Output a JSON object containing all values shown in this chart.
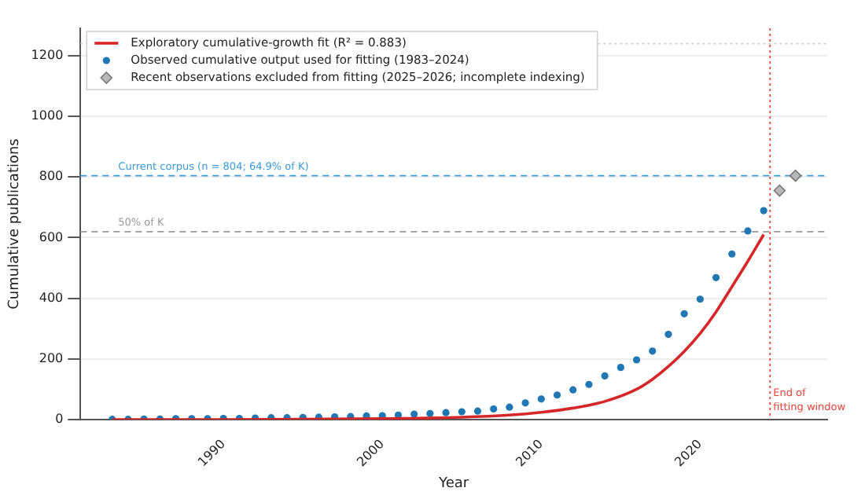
{
  "chart_data": {
    "type": "scatter",
    "xlabel": "Year",
    "ylabel": "Cumulative publications",
    "xlim": [
      1981,
      2028
    ],
    "ylim": [
      0,
      1290
    ],
    "xticks": [
      1990,
      2000,
      2010,
      2020
    ],
    "yticks": [
      0,
      200,
      400,
      600,
      800,
      1000,
      1200
    ],
    "grid": "y",
    "legend": "top left",
    "series": [
      {
        "name": "Exploratory cumulative-growth fit (R² = 0.883)",
        "type": "line",
        "color": "#d62728",
        "marker": "none",
        "x": [
          1983,
          1990,
          1995,
          2000,
          2005,
          2008,
          2010,
          2012,
          2014,
          2016,
          2017,
          2018,
          2019,
          2020,
          2021,
          2022,
          2023,
          2024
        ],
        "values": [
          0,
          0,
          1,
          3,
          8,
          15,
          24,
          38,
          60,
          100,
          133,
          175,
          225,
          284,
          355,
          438,
          522,
          610
        ]
      },
      {
        "name": "Observed cumulative output used for fitting (1983–2024)",
        "type": "scatter",
        "color": "#1f77b4",
        "marker": "circle",
        "x": [
          1983,
          1984,
          1985,
          1986,
          1987,
          1988,
          1989,
          1990,
          1991,
          1992,
          1993,
          1994,
          1995,
          1996,
          1997,
          1998,
          1999,
          2000,
          2001,
          2002,
          2003,
          2004,
          2005,
          2006,
          2007,
          2008,
          2009,
          2010,
          2011,
          2012,
          2013,
          2014,
          2015,
          2016,
          2017,
          2018,
          2019,
          2020,
          2021,
          2022,
          2023,
          2024
        ],
        "values": [
          1,
          1,
          2,
          2,
          3,
          3,
          3,
          4,
          4,
          5,
          6,
          6,
          7,
          8,
          9,
          10,
          12,
          13,
          15,
          18,
          20,
          23,
          26,
          28,
          35,
          41,
          55,
          68,
          81,
          98,
          116,
          144,
          172,
          197,
          226,
          281,
          349,
          397,
          468,
          546,
          622,
          689
        ]
      },
      {
        "name": "Recent observations excluded from fitting (2025–2026; incomplete indexing)",
        "type": "scatter",
        "color": "#b8b8b8",
        "marker": "diamond",
        "x": [
          2025,
          2026
        ],
        "values": [
          755,
          804
        ]
      }
    ],
    "ref_lines": [
      {
        "axis": "y",
        "value": 804,
        "label": "Current corpus (n = 804; 64.9% of K)",
        "color": "#3a9ad9",
        "line_style": "dashed"
      },
      {
        "axis": "y",
        "value": 619.5,
        "label": "50% of K",
        "color": "#999999",
        "line_style": "dashed"
      },
      {
        "axis": "y",
        "value": 1239,
        "label": null,
        "color": "#cccccc",
        "line_style": "dotted"
      },
      {
        "axis": "x",
        "value": 2024.4,
        "label": "End of\nfitting window",
        "color": "#e8443a",
        "line_style": "dotted"
      }
    ]
  }
}
